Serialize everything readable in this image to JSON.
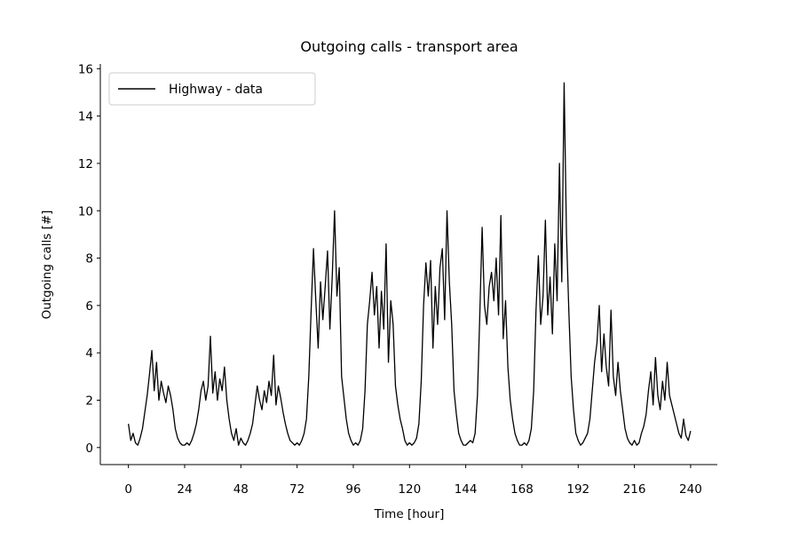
{
  "chart_data": {
    "type": "line",
    "title": "Outgoing calls - transport area",
    "x_label": "Time [hour]",
    "y_label": "Outgoing calls [#]",
    "legend": "upper left",
    "grid": false,
    "x": [
      0,
      1,
      2,
      3,
      4,
      5,
      6,
      7,
      8,
      9,
      10,
      11,
      12,
      13,
      14,
      15,
      16,
      17,
      18,
      19,
      20,
      21,
      22,
      23,
      24,
      25,
      26,
      27,
      28,
      29,
      30,
      31,
      32,
      33,
      34,
      35,
      36,
      37,
      38,
      39,
      40,
      41,
      42,
      43,
      44,
      45,
      46,
      47,
      48,
      49,
      50,
      51,
      52,
      53,
      54,
      55,
      56,
      57,
      58,
      59,
      60,
      61,
      62,
      63,
      64,
      65,
      66,
      67,
      68,
      69,
      70,
      71,
      72,
      73,
      74,
      75,
      76,
      77,
      78,
      79,
      80,
      81,
      82,
      83,
      84,
      85,
      86,
      87,
      88,
      89,
      90,
      91,
      92,
      93,
      94,
      95,
      96,
      97,
      98,
      99,
      100,
      101,
      102,
      103,
      104,
      105,
      106,
      107,
      108,
      109,
      110,
      111,
      112,
      113,
      114,
      115,
      116,
      117,
      118,
      119,
      120,
      121,
      122,
      123,
      124,
      125,
      126,
      127,
      128,
      129,
      130,
      131,
      132,
      133,
      134,
      135,
      136,
      137,
      138,
      139,
      140,
      141,
      142,
      143,
      144,
      145,
      146,
      147,
      148,
      149,
      150,
      151,
      152,
      153,
      154,
      155,
      156,
      157,
      158,
      159,
      160,
      161,
      162,
      163,
      164,
      165,
      166,
      167,
      168,
      169,
      170,
      171,
      172,
      173,
      174,
      175,
      176,
      177,
      178,
      179,
      180,
      181,
      182,
      183,
      184,
      185,
      186,
      187,
      188,
      189,
      190,
      191,
      192,
      193,
      194,
      195,
      196,
      197,
      198,
      199,
      200,
      201,
      202,
      203,
      204,
      205,
      206,
      207,
      208,
      209,
      210,
      211,
      212,
      213,
      214,
      215,
      216,
      217,
      218,
      219,
      220,
      221,
      222,
      223,
      224,
      225,
      226,
      227,
      228,
      229,
      230,
      231,
      232,
      233,
      234,
      235,
      236,
      237,
      238,
      239,
      240
    ],
    "series": [
      {
        "name": "Highway - data",
        "color": "#000000",
        "values": [
          1.0,
          0.3,
          0.6,
          0.2,
          0.1,
          0.4,
          0.8,
          1.5,
          2.2,
          3.1,
          4.1,
          2.4,
          3.6,
          2.0,
          2.8,
          2.3,
          1.9,
          2.6,
          2.2,
          1.6,
          0.8,
          0.4,
          0.2,
          0.1,
          0.1,
          0.2,
          0.1,
          0.3,
          0.6,
          1.0,
          1.6,
          2.4,
          2.8,
          2.0,
          2.6,
          4.7,
          2.3,
          3.2,
          2.0,
          2.9,
          2.4,
          3.4,
          2.0,
          1.2,
          0.6,
          0.3,
          0.8,
          0.1,
          0.4,
          0.2,
          0.1,
          0.3,
          0.6,
          1.0,
          1.8,
          2.6,
          2.0,
          1.6,
          2.4,
          1.9,
          2.8,
          2.2,
          3.9,
          1.8,
          2.6,
          2.1,
          1.5,
          1.0,
          0.6,
          0.3,
          0.2,
          0.1,
          0.2,
          0.1,
          0.3,
          0.6,
          1.2,
          3.0,
          5.8,
          8.4,
          6.2,
          4.2,
          7.0,
          5.4,
          6.8,
          8.3,
          5.0,
          7.2,
          10.0,
          6.4,
          7.6,
          3.0,
          2.1,
          1.2,
          0.6,
          0.3,
          0.1,
          0.2,
          0.1,
          0.3,
          0.8,
          2.4,
          5.2,
          6.2,
          7.4,
          5.6,
          6.8,
          4.2,
          6.6,
          5.0,
          8.6,
          3.6,
          6.2,
          5.2,
          2.6,
          1.8,
          1.2,
          0.8,
          0.3,
          0.1,
          0.2,
          0.1,
          0.2,
          0.4,
          1.0,
          2.8,
          6.0,
          7.8,
          6.4,
          7.9,
          4.2,
          6.8,
          5.2,
          7.6,
          8.4,
          5.4,
          10.0,
          7.0,
          5.2,
          2.4,
          1.4,
          0.6,
          0.3,
          0.1,
          0.1,
          0.2,
          0.3,
          0.2,
          0.6,
          2.2,
          5.6,
          9.3,
          6.0,
          5.2,
          6.8,
          7.4,
          6.2,
          8.0,
          5.6,
          9.8,
          4.6,
          6.2,
          3.4,
          2.0,
          1.2,
          0.6,
          0.3,
          0.1,
          0.1,
          0.2,
          0.1,
          0.3,
          0.8,
          2.4,
          5.8,
          8.1,
          5.2,
          6.4,
          9.6,
          5.6,
          7.2,
          4.8,
          8.6,
          6.2,
          12.0,
          7.0,
          15.4,
          9.0,
          5.8,
          3.0,
          1.6,
          0.6,
          0.3,
          0.1,
          0.2,
          0.4,
          0.6,
          1.2,
          2.4,
          3.6,
          4.4,
          6.0,
          3.2,
          4.8,
          3.4,
          2.6,
          5.8,
          3.0,
          2.2,
          3.6,
          2.4,
          1.6,
          0.8,
          0.4,
          0.2,
          0.1,
          0.3,
          0.1,
          0.2,
          0.6,
          0.9,
          1.4,
          2.4,
          3.2,
          1.8,
          3.8,
          2.2,
          1.6,
          2.8,
          2.0,
          3.6,
          2.2,
          1.8,
          1.4,
          1.0,
          0.6,
          0.4,
          1.2,
          0.5,
          0.3,
          0.7
        ]
      }
    ],
    "xlim": [
      -12,
      251.4
    ],
    "ylim": [
      -0.72,
      16.2
    ],
    "xticks": [
      0,
      24,
      48,
      72,
      96,
      120,
      144,
      168,
      192,
      216,
      240
    ],
    "yticks": [
      0,
      2,
      4,
      6,
      8,
      10,
      12,
      14,
      16
    ]
  }
}
